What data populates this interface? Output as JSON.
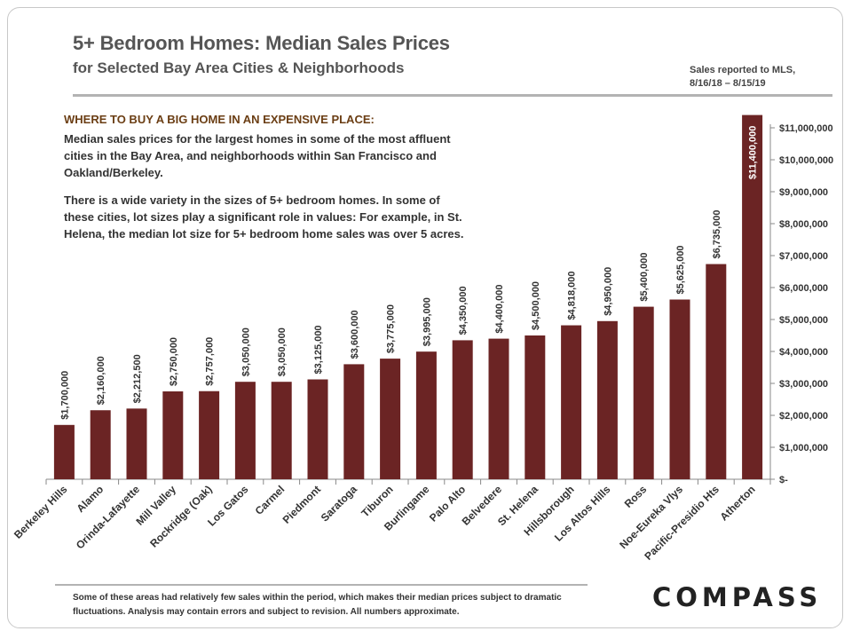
{
  "header": {
    "title": "5+ Bedroom Homes: Median Sales Prices",
    "subtitle": "for Selected Bay Area Cities & Neighborhoods",
    "source_line1": "Sales reported to MLS,",
    "source_line2": "8/16/18 – 8/15/19"
  },
  "annotation": {
    "heading": "WHERE TO BUY A BIG HOME IN AN EXPENSIVE PLACE:",
    "para1": "Median sales prices for the largest homes in some of the most affluent cities in the Bay Area, and neighborhoods within San Francisco and Oakland/Berkeley.",
    "para2": "There is a wide variety in the sizes of 5+ bedroom homes. In some of these cities, lot sizes play a significant role in values: For example, in St. Helena, the median lot size for 5+ bedroom home sales was over 5 acres."
  },
  "footer": {
    "note": "Some of these areas had relatively few sales within the period, which makes their median prices subject to dramatic fluctuations. Analysis may contain errors and subject to revision. All numbers approximate.",
    "logo": "COMPASS"
  },
  "colors": {
    "bar": "#6b2424",
    "axis": "#888888",
    "text": "#333333"
  },
  "chart_data": {
    "type": "bar",
    "title": "5+ Bedroom Homes: Median Sales Prices",
    "xlabel": "",
    "ylabel": "",
    "axis_side": "right",
    "ylim": [
      0,
      11000000
    ],
    "yticks": [
      0,
      1000000,
      2000000,
      3000000,
      4000000,
      5000000,
      6000000,
      7000000,
      8000000,
      9000000,
      10000000,
      11000000
    ],
    "ytick_labels": [
      "$-",
      "$1,000,000",
      "$2,000,000",
      "$3,000,000",
      "$4,000,000",
      "$5,000,000",
      "$6,000,000",
      "$7,000,000",
      "$8,000,000",
      "$9,000,000",
      "$10,000,000",
      "$11,000,000"
    ],
    "categories": [
      "Berkeley Hills",
      "Alamo",
      "Orinda-Lafayette",
      "Mill Valley",
      "Rockridge (Oak)",
      "Los Gatos",
      "Carmel",
      "Piedmont",
      "Saratoga",
      "Tiburon",
      "Burlingame",
      "Palo Alto",
      "Belvedere",
      "St. Helena",
      "Hillsborough",
      "Los Altos Hills",
      "Ross",
      "Noe-Eureka Vlys",
      "Pacific-Presidio Hts",
      "Atherton"
    ],
    "values": [
      1700000,
      2160000,
      2212500,
      2750000,
      2757000,
      3050000,
      3050000,
      3125000,
      3600000,
      3775000,
      3995000,
      4350000,
      4400000,
      4500000,
      4818000,
      4950000,
      5400000,
      5625000,
      6735000,
      11400000
    ],
    "labels": [
      "$1,700,000",
      "$2,160,000",
      "$2,212,500",
      "$2,750,000",
      "$2,757,000",
      "$3,050,000",
      "$3,050,000",
      "$3,125,000",
      "$3,600,000",
      "$3,775,000",
      "$3,995,000",
      "$4,350,000",
      "$4,400,000",
      "$4,500,000",
      "$4,818,000",
      "$4,950,000",
      "$5,400,000",
      "$5,625,000",
      "$6,735,000",
      "$11,400,000"
    ]
  }
}
